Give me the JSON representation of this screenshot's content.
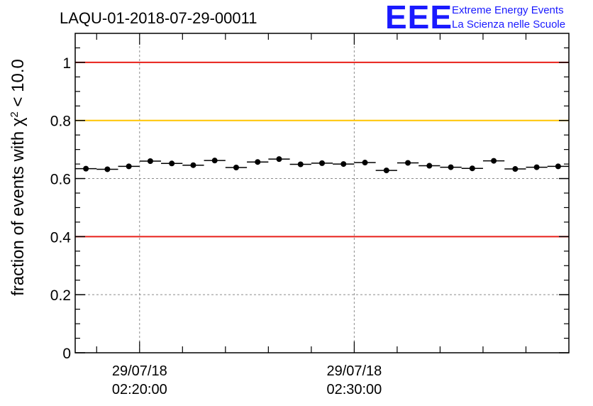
{
  "chart_data": {
    "type": "scatter",
    "title": "LAQU-01-2018-07-29-00011",
    "ylabel_prefix": "fraction of events with ",
    "ylabel_symbol": "χ",
    "ylabel_sup": "2",
    "ylabel_suffix": " < 10.0",
    "xlabel": "",
    "ylim": [
      0,
      1.1
    ],
    "xlim": [
      0,
      23
    ],
    "grid": true,
    "y_ticks": [
      {
        "value": 0,
        "label": "0"
      },
      {
        "value": 0.2,
        "label": "0.2"
      },
      {
        "value": 0.4,
        "label": "0.4"
      },
      {
        "value": 0.6,
        "label": "0.6"
      },
      {
        "value": 0.8,
        "label": "0.8"
      },
      {
        "value": 1.0,
        "label": "1"
      }
    ],
    "x_ticks": [
      {
        "value": 3,
        "date": "29/07/18",
        "time": "02:20:00"
      },
      {
        "value": 13,
        "date": "29/07/18",
        "time": "02:30:00"
      }
    ],
    "reference_lines": [
      {
        "y": 1.0,
        "color": "#e8201a"
      },
      {
        "y": 0.8,
        "color": "#ffc400"
      },
      {
        "y": 0.4,
        "color": "#e8201a"
      }
    ],
    "series": [
      {
        "name": "fraction",
        "x": [
          0.5,
          1.5,
          2.5,
          3.5,
          4.5,
          5.5,
          6.5,
          7.5,
          8.5,
          9.5,
          10.5,
          11.5,
          12.5,
          13.5,
          14.5,
          15.5,
          16.5,
          17.5,
          18.5,
          19.5,
          20.5,
          21.5,
          22.5
        ],
        "values": [
          0.634,
          0.632,
          0.642,
          0.66,
          0.652,
          0.646,
          0.662,
          0.638,
          0.657,
          0.667,
          0.649,
          0.653,
          0.65,
          0.655,
          0.628,
          0.654,
          0.644,
          0.639,
          0.635,
          0.661,
          0.633,
          0.639,
          0.642
        ],
        "x_error": 0.5
      }
    ]
  },
  "logo": {
    "mark": "EEE",
    "line1": "Extreme Energy Events",
    "line2": "La Scienza nelle Scuole",
    "color": "#1a1aff"
  }
}
